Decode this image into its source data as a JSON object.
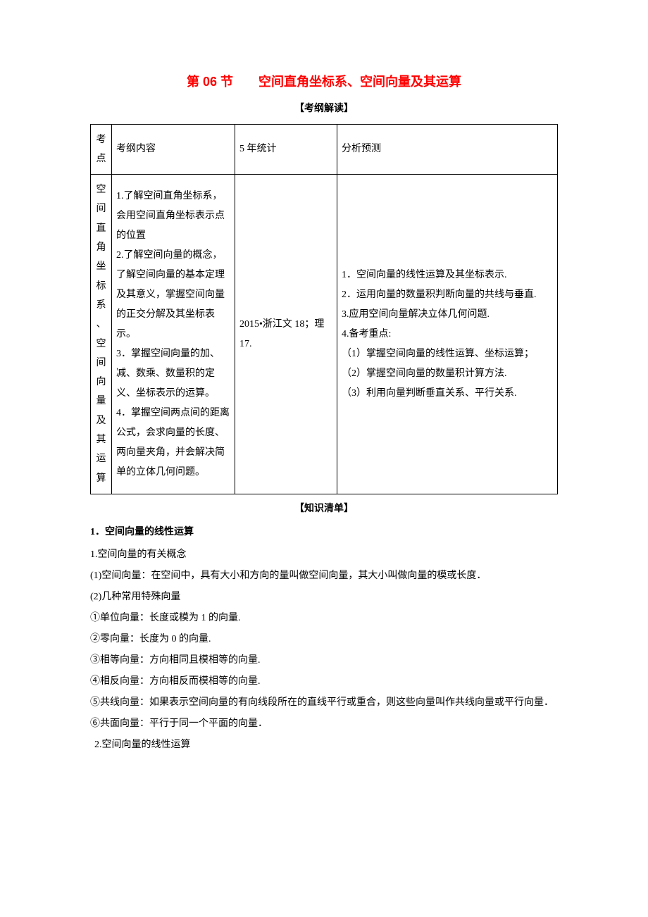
{
  "title": "第 06 节　　空间直角坐标系、空间向量及其运算",
  "section1_label": "【考纲解读】",
  "table": {
    "header": {
      "topic": "考点",
      "content": "考纲内容",
      "stats": "5 年统计",
      "analysis": "分析预测"
    },
    "row": {
      "topic": "空间直角坐标系、空间向量及其运算",
      "content": "1.了解空间直角坐标系，会用空间直角坐标表示点的位置\n2.了解空间向量的概念，了解空间向量的基本定理及其意义，掌握空间向量的正交分解及其坐标表示。\n3．掌握空间向量的加、减、数乘、数量积的定义、坐标表示的运算。\n4．掌握空间两点间的距离公式，会求向量的长度、两向量夹角，并会解决简单的立体几何问题。",
      "stats": "2015•浙江文 18；理 17.",
      "analysis": "1．空间向量的线性运算及其坐标表示.\n2．运用向量的数量积判断向量的共线与垂直.\n3.应用空间向量解决立体几何问题.\n4.备考重点:\n（1）掌握空间向量的线性运算、坐标运算；\n（2）掌握空间向量的数量积计算方法.\n（3）利用向量判断垂直关系、平行关系."
    }
  },
  "section2_label": "【知识清单】",
  "knowledge": {
    "heading1": "1．空间向量的线性运算",
    "p1": "1.空间向量的有关概念",
    "p2": "(1)空间向量：在空间中，具有大小和方向的量叫做空间向量，其大小叫做向量的模或长度．",
    "p3": "(2)几种常用特殊向量",
    "p4": "①单位向量：长度或模为 1 的向量.",
    "p5": "②零向量：长度为 0 的向量.",
    "p6": "③相等向量：方向相同且模相等的向量.",
    "p7": "④相反向量：方向相反而模相等的向量.",
    "p8": "⑤共线向量：如果表示空间向量的有向线段所在的直线平行或重合，则这些向量叫作共线向量或平行向量．",
    "p9": "⑥共面向量：平行于同一个平面的向量．",
    "p10": "2.空间向量的线性运算"
  },
  "colors": {
    "title_color": "#ff0000",
    "text_color": "#000000",
    "border_color": "#000000",
    "background_color": "#ffffff"
  }
}
